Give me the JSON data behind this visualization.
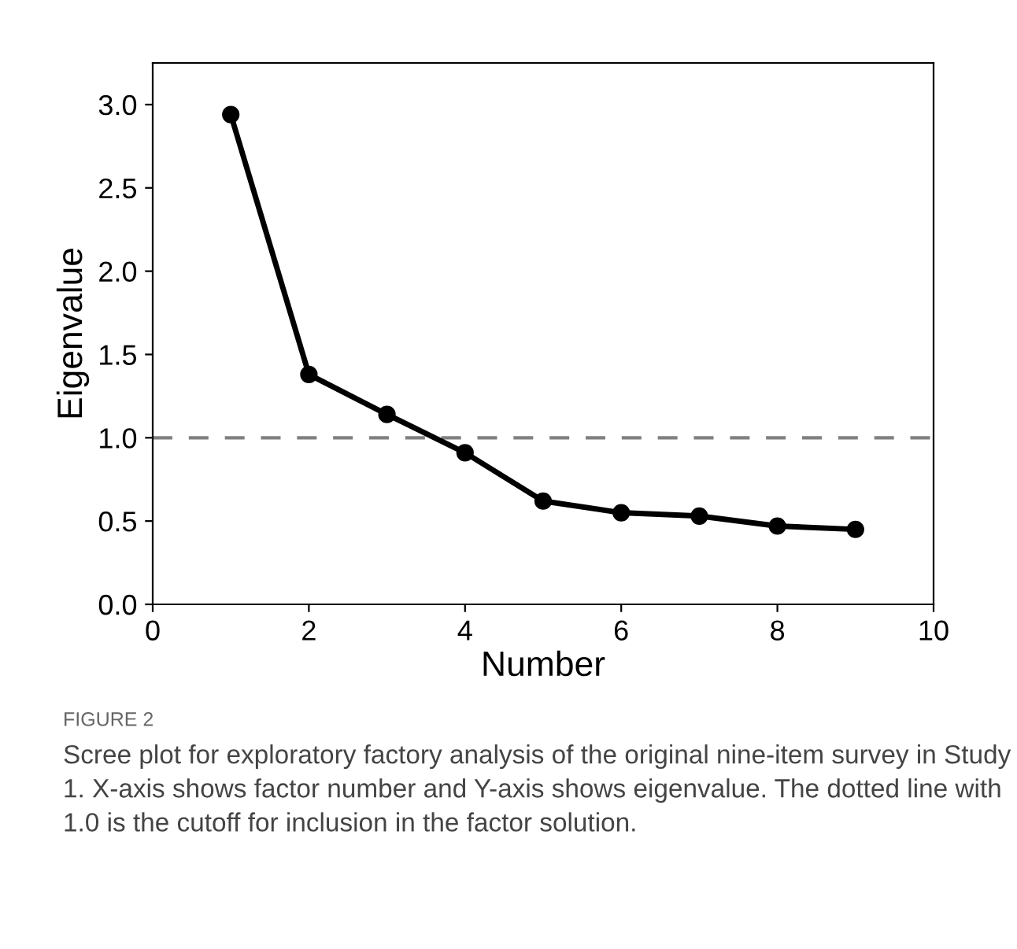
{
  "chart_data": {
    "type": "line",
    "xlabel": "Number",
    "ylabel": "Eigenvalue",
    "x": [
      1,
      2,
      3,
      4,
      5,
      6,
      7,
      8,
      9
    ],
    "series": [
      {
        "color": "#000000",
        "values": [
          2.94,
          1.38,
          1.14,
          0.91,
          0.62,
          0.55,
          0.53,
          0.47,
          0.45
        ]
      }
    ],
    "xlim": [
      0,
      10
    ],
    "xticks": [
      0,
      2,
      4,
      6,
      8,
      10
    ],
    "ylim": [
      0,
      3.25
    ],
    "yticks": [
      {
        "value": 0,
        "label": "0.0"
      },
      {
        "value": 0.5,
        "label": "0.5"
      },
      {
        "value": 1,
        "label": "1.0"
      },
      {
        "value": 1.5,
        "label": "1.5"
      },
      {
        "value": 2,
        "label": "2.0"
      },
      {
        "value": 2.5,
        "label": "2.5"
      },
      {
        "value": 3,
        "label": "3.0"
      }
    ],
    "ref_lines": [
      {
        "axis": "y",
        "value": 1,
        "color": "#808080",
        "line_style": "dashed"
      }
    ],
    "marker": "circle",
    "line_style": "solid",
    "grid": false,
    "legend": false,
    "annotations": [
      "FIGURE 2",
      "Scree plot for exploratory factory analysis of the original nine-item survey in Study 1. X-axis shows factor number and Y-axis shows eigenvalue. The dotted line with 1.0 is the cutoff for inclusion in the factor solution."
    ]
  }
}
